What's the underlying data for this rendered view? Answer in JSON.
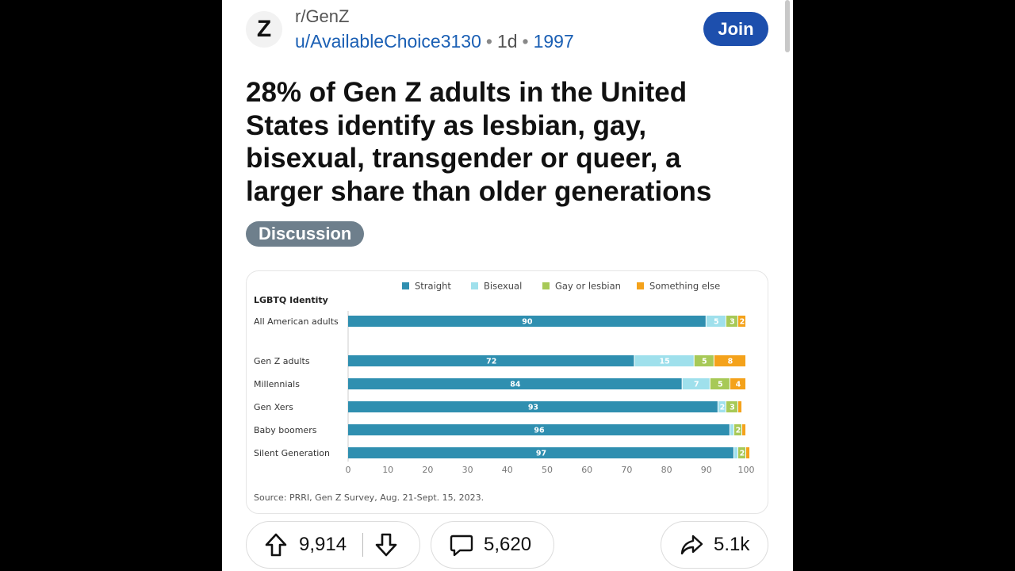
{
  "post": {
    "subreddit": "r/GenZ",
    "avatar_letter": "Z",
    "author": "u/AvailableChoice3130",
    "age": "1d",
    "flair": "1997",
    "join_label": "Join",
    "title": "28% of Gen Z adults in the United States identify as lesbian, gay, bisexual, transgender or queer, a larger share than older generations",
    "tag": "Discussion"
  },
  "chart_data": {
    "type": "bar",
    "orientation": "horizontal",
    "stacked": true,
    "title": "LGBTQ Identity",
    "categories": [
      "All American adults",
      "Gen Z adults",
      "Millennials",
      "Gen Xers",
      "Baby boomers",
      "Silent Generation"
    ],
    "series": [
      {
        "name": "Straight",
        "values": [
          90,
          72,
          84,
          93,
          96,
          97
        ],
        "labels": [
          "90",
          "72",
          "84",
          "93",
          "96",
          "97"
        ]
      },
      {
        "name": "Bisexual",
        "values": [
          5,
          15,
          7,
          2,
          1,
          1
        ],
        "labels": [
          "5",
          "15",
          "7",
          "2",
          "",
          ""
        ]
      },
      {
        "name": "Gay or lesbian",
        "values": [
          3,
          5,
          5,
          3,
          2,
          2
        ],
        "labels": [
          "3",
          "5",
          "5",
          "3",
          "2",
          "2"
        ]
      },
      {
        "name": "Something else",
        "values": [
          2,
          8,
          4,
          1,
          1,
          1
        ],
        "labels": [
          "2",
          "8",
          "4",
          "",
          "",
          ""
        ]
      }
    ],
    "colors": [
      "#2f8fb0",
      "#9fe0ec",
      "#a7c957",
      "#f4a21b"
    ],
    "xticks": [
      "0",
      "10",
      "20",
      "30",
      "40",
      "50",
      "60",
      "70",
      "80",
      "90",
      "100"
    ],
    "xlim": [
      0,
      100
    ],
    "legend_position": "top",
    "source": "Source: PRRI, Gen Z Survey, Aug. 21-Sept. 15, 2023."
  },
  "actions": {
    "upvotes": "9,914",
    "comments": "5,620",
    "shares": "5.1k"
  }
}
